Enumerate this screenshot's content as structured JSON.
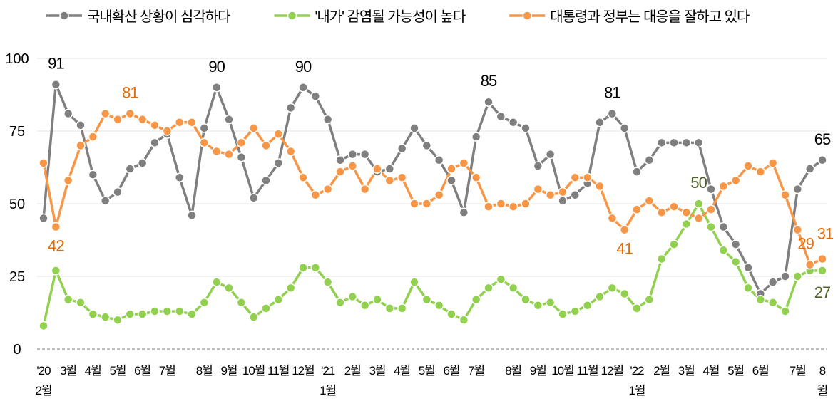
{
  "chart_data": {
    "type": "line",
    "categories": [
      "'20\n2월",
      null,
      "3월",
      null,
      "4월",
      null,
      "5월",
      null,
      "6월",
      null,
      "7월",
      null,
      null,
      "8월",
      null,
      "9월",
      null,
      "10월",
      null,
      "11월",
      null,
      "12월",
      null,
      "'21\n1월",
      null,
      "2월",
      null,
      "3월",
      null,
      "4월",
      null,
      "5월",
      null,
      "6월",
      null,
      "7월",
      null,
      null,
      "8월",
      null,
      "9월",
      null,
      "10월",
      null,
      "11월",
      null,
      "12월",
      null,
      "'22\n1월",
      null,
      "2월",
      null,
      "3월",
      null,
      "4월",
      null,
      "5월",
      null,
      "6월",
      null,
      null,
      "7월",
      null,
      "8월"
    ],
    "series": [
      {
        "name": "국내확산 상황이 심각하다",
        "color": "#7f7f7f",
        "label_color": "#000000",
        "values": [
          45,
          91,
          81,
          77,
          60,
          51,
          54,
          62,
          64,
          71,
          74,
          59,
          46,
          76,
          90,
          79,
          66,
          52,
          58,
          64,
          83,
          90,
          87,
          79,
          65,
          67,
          67,
          61,
          62,
          69,
          76,
          70,
          65,
          58,
          47,
          73,
          85,
          80,
          78,
          76,
          63,
          67,
          51,
          53,
          57,
          78,
          81,
          76,
          61,
          65,
          71,
          71,
          71,
          71,
          55,
          42,
          36,
          28,
          19,
          23,
          25,
          55,
          62,
          65
        ],
        "value_labels": [
          null,
          "91",
          null,
          null,
          null,
          null,
          null,
          null,
          null,
          null,
          null,
          null,
          null,
          null,
          "90",
          null,
          null,
          null,
          null,
          null,
          null,
          "90",
          null,
          null,
          null,
          null,
          null,
          null,
          null,
          null,
          null,
          null,
          null,
          null,
          null,
          null,
          "85",
          null,
          null,
          null,
          null,
          null,
          null,
          null,
          null,
          null,
          "81",
          null,
          null,
          null,
          null,
          null,
          null,
          null,
          null,
          null,
          null,
          null,
          null,
          null,
          null,
          null,
          null,
          "65"
        ]
      },
      {
        "name": "'내가' 감염될 가능성이 높다",
        "color": "#92d050",
        "label_color": "#4f6228",
        "values": [
          8,
          27,
          17,
          16,
          12,
          11,
          10,
          12,
          12,
          13,
          13,
          13,
          12,
          16,
          23,
          21,
          16,
          11,
          14,
          17,
          21,
          28,
          28,
          23,
          16,
          18,
          15,
          17,
          14,
          14,
          23,
          17,
          15,
          12,
          10,
          17,
          21,
          24,
          21,
          17,
          15,
          16,
          12,
          13,
          15,
          18,
          21,
          19,
          14,
          17,
          31,
          36,
          43,
          50,
          42,
          34,
          30,
          21,
          17,
          16,
          13,
          25,
          27,
          27
        ],
        "value_labels": [
          null,
          null,
          null,
          null,
          null,
          null,
          null,
          null,
          null,
          null,
          null,
          null,
          null,
          null,
          null,
          null,
          null,
          null,
          null,
          null,
          null,
          null,
          null,
          null,
          null,
          null,
          null,
          null,
          null,
          null,
          null,
          null,
          null,
          null,
          null,
          null,
          null,
          null,
          null,
          null,
          null,
          null,
          null,
          null,
          null,
          null,
          null,
          null,
          null,
          null,
          null,
          null,
          null,
          "50",
          null,
          null,
          null,
          null,
          null,
          null,
          null,
          null,
          null,
          "27"
        ]
      },
      {
        "name": "대통령과 정부는 대응을 잘하고 있다",
        "color": "#f79646",
        "label_color": "#e36c0a",
        "values": [
          64,
          42,
          58,
          70,
          73,
          81,
          79,
          81,
          79,
          77,
          75,
          78,
          78,
          71,
          68,
          67,
          71,
          76,
          70,
          74,
          68,
          59,
          53,
          55,
          61,
          63,
          55,
          62,
          58,
          59,
          50,
          50,
          53,
          62,
          64,
          59,
          49,
          50,
          49,
          50,
          55,
          53,
          54,
          59,
          59,
          56,
          45,
          41,
          48,
          51,
          47,
          49,
          47,
          45,
          48,
          56,
          58,
          63,
          61,
          64,
          53,
          41,
          29,
          31
        ],
        "value_labels": [
          null,
          "42",
          null,
          null,
          null,
          null,
          null,
          "81",
          null,
          null,
          null,
          null,
          null,
          null,
          null,
          null,
          null,
          null,
          null,
          null,
          null,
          null,
          null,
          null,
          null,
          null,
          null,
          null,
          null,
          null,
          null,
          null,
          null,
          null,
          null,
          null,
          null,
          null,
          null,
          null,
          null,
          null,
          null,
          null,
          null,
          null,
          null,
          "41",
          null,
          null,
          null,
          null,
          null,
          null,
          null,
          null,
          null,
          null,
          null,
          null,
          null,
          null,
          "29",
          "31"
        ]
      }
    ],
    "ylim": [
      0,
      100
    ],
    "yticks": [
      0,
      25,
      50,
      75,
      100
    ],
    "grid": true,
    "legend": "top"
  }
}
